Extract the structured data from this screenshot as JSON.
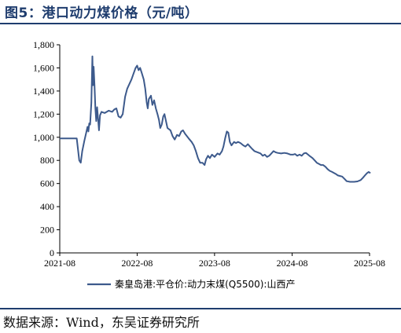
{
  "header": {
    "title": "图5：港口动力煤价格（元/吨）"
  },
  "footer": {
    "source": "数据来源：Wind，东吴证券研究所"
  },
  "colors": {
    "accent": "#1f3d6e",
    "series": "#3d5a8c"
  },
  "chart_data": {
    "type": "line",
    "title": "",
    "xlabel": "",
    "ylabel": "",
    "ylim": [
      0,
      1800
    ],
    "yticks": [
      0,
      200,
      400,
      600,
      800,
      1000,
      1200,
      1400,
      1600,
      1800
    ],
    "ytick_labels": [
      "0",
      "200",
      "400",
      "600",
      "800",
      "1,000",
      "1,200",
      "1,400",
      "1,600",
      "1,800"
    ],
    "xlim": [
      "2021-08",
      "2025-08"
    ],
    "xticks": [
      "2021-08",
      "2022-08",
      "2023-08",
      "2024-08",
      "2025-08"
    ],
    "legend_position": "bottom",
    "grid": false,
    "series": [
      {
        "name": "秦皇岛港:平仓价:动力末煤(Q5500):山西产",
        "points": [
          [
            "2021-08-01",
            990
          ],
          [
            "2021-10-20",
            990
          ],
          [
            "2021-11-01",
            800
          ],
          [
            "2021-11-08",
            780
          ],
          [
            "2021-11-15",
            880
          ],
          [
            "2021-11-25",
            970
          ],
          [
            "2021-12-05",
            1050
          ],
          [
            "2021-12-10",
            1090
          ],
          [
            "2021-12-14",
            1050
          ],
          [
            "2021-12-18",
            1120
          ],
          [
            "2021-12-22",
            1110
          ],
          [
            "2021-12-28",
            1300
          ],
          [
            "2022-01-02",
            1700
          ],
          [
            "2022-01-05",
            1450
          ],
          [
            "2022-01-08",
            1610
          ],
          [
            "2022-01-12",
            1450
          ],
          [
            "2022-01-16",
            1250
          ],
          [
            "2022-01-20",
            1140
          ],
          [
            "2022-01-24",
            1260
          ],
          [
            "2022-01-28",
            1180
          ],
          [
            "2022-02-02",
            1060
          ],
          [
            "2022-02-07",
            1190
          ],
          [
            "2022-02-14",
            1220
          ],
          [
            "2022-03-01",
            1210
          ],
          [
            "2022-03-20",
            1230
          ],
          [
            "2022-04-05",
            1220
          ],
          [
            "2022-04-15",
            1240
          ],
          [
            "2022-04-25",
            1250
          ],
          [
            "2022-05-05",
            1180
          ],
          [
            "2022-05-15",
            1170
          ],
          [
            "2022-05-25",
            1200
          ],
          [
            "2022-06-05",
            1350
          ],
          [
            "2022-06-15",
            1420
          ],
          [
            "2022-06-25",
            1460
          ],
          [
            "2022-07-05",
            1500
          ],
          [
            "2022-07-15",
            1550
          ],
          [
            "2022-07-25",
            1600
          ],
          [
            "2022-08-01",
            1620
          ],
          [
            "2022-08-08",
            1580
          ],
          [
            "2022-08-15",
            1600
          ],
          [
            "2022-08-22",
            1560
          ],
          [
            "2022-09-01",
            1500
          ],
          [
            "2022-09-08",
            1420
          ],
          [
            "2022-09-15",
            1300
          ],
          [
            "2022-09-20",
            1250
          ],
          [
            "2022-09-25",
            1330
          ],
          [
            "2022-10-05",
            1360
          ],
          [
            "2022-10-12",
            1280
          ],
          [
            "2022-10-20",
            1320
          ],
          [
            "2022-10-28",
            1250
          ],
          [
            "2022-11-05",
            1200
          ],
          [
            "2022-11-12",
            1150
          ],
          [
            "2022-11-18",
            1080
          ],
          [
            "2022-11-25",
            1110
          ],
          [
            "2022-12-02",
            1180
          ],
          [
            "2022-12-08",
            1200
          ],
          [
            "2022-12-15",
            1140
          ],
          [
            "2022-12-22",
            1080
          ],
          [
            "2023-01-05",
            1060
          ],
          [
            "2023-01-15",
            1010
          ],
          [
            "2023-01-25",
            980
          ],
          [
            "2023-02-05",
            1020
          ],
          [
            "2023-02-15",
            1010
          ],
          [
            "2023-02-25",
            1050
          ],
          [
            "2023-03-05",
            1060
          ],
          [
            "2023-03-15",
            1030
          ],
          [
            "2023-04-01",
            990
          ],
          [
            "2023-04-15",
            960
          ],
          [
            "2023-04-25",
            930
          ],
          [
            "2023-05-05",
            880
          ],
          [
            "2023-05-15",
            820
          ],
          [
            "2023-05-25",
            780
          ],
          [
            "2023-06-05",
            780
          ],
          [
            "2023-06-15",
            760
          ],
          [
            "2023-06-22",
            810
          ],
          [
            "2023-07-01",
            840
          ],
          [
            "2023-07-10",
            820
          ],
          [
            "2023-07-20",
            850
          ],
          [
            "2023-08-01",
            830
          ],
          [
            "2023-08-15",
            860
          ],
          [
            "2023-08-25",
            850
          ],
          [
            "2023-09-05",
            880
          ],
          [
            "2023-09-12",
            920
          ],
          [
            "2023-09-20",
            990
          ],
          [
            "2023-09-28",
            1050
          ],
          [
            "2023-10-05",
            1040
          ],
          [
            "2023-10-12",
            960
          ],
          [
            "2023-10-20",
            930
          ],
          [
            "2023-11-01",
            960
          ],
          [
            "2023-11-10",
            950
          ],
          [
            "2023-11-20",
            960
          ],
          [
            "2023-12-01",
            950
          ],
          [
            "2023-12-15",
            930
          ],
          [
            "2023-12-25",
            920
          ],
          [
            "2024-01-05",
            940
          ],
          [
            "2024-01-15",
            920
          ],
          [
            "2024-01-25",
            900
          ],
          [
            "2024-02-05",
            880
          ],
          [
            "2024-02-20",
            870
          ],
          [
            "2024-03-05",
            860
          ],
          [
            "2024-03-15",
            840
          ],
          [
            "2024-03-25",
            850
          ],
          [
            "2024-04-05",
            830
          ],
          [
            "2024-04-15",
            840
          ],
          [
            "2024-04-25",
            860
          ],
          [
            "2024-05-05",
            880
          ],
          [
            "2024-05-15",
            870
          ],
          [
            "2024-05-25",
            865
          ],
          [
            "2024-06-10",
            860
          ],
          [
            "2024-06-25",
            865
          ],
          [
            "2024-07-10",
            860
          ],
          [
            "2024-07-25",
            850
          ],
          [
            "2024-08-05",
            850
          ],
          [
            "2024-08-15",
            855
          ],
          [
            "2024-08-25",
            840
          ],
          [
            "2024-09-05",
            850
          ],
          [
            "2024-09-15",
            840
          ],
          [
            "2024-09-25",
            860
          ],
          [
            "2024-10-05",
            865
          ],
          [
            "2024-10-15",
            850
          ],
          [
            "2024-10-25",
            835
          ],
          [
            "2024-11-05",
            820
          ],
          [
            "2024-11-15",
            800
          ],
          [
            "2024-11-25",
            780
          ],
          [
            "2024-12-05",
            770
          ],
          [
            "2024-12-15",
            760
          ],
          [
            "2024-12-25",
            760
          ],
          [
            "2025-01-05",
            745
          ],
          [
            "2025-01-15",
            725
          ],
          [
            "2025-01-25",
            710
          ],
          [
            "2025-02-05",
            700
          ],
          [
            "2025-02-15",
            690
          ],
          [
            "2025-02-25",
            680
          ],
          [
            "2025-03-05",
            670
          ],
          [
            "2025-03-15",
            665
          ],
          [
            "2025-03-25",
            660
          ],
          [
            "2025-04-05",
            640
          ],
          [
            "2025-04-15",
            620
          ],
          [
            "2025-05-01",
            615
          ],
          [
            "2025-05-20",
            615
          ],
          [
            "2025-06-05",
            618
          ],
          [
            "2025-06-20",
            630
          ],
          [
            "2025-07-01",
            650
          ],
          [
            "2025-07-10",
            670
          ],
          [
            "2025-07-20",
            690
          ],
          [
            "2025-07-28",
            700
          ],
          [
            "2025-08-05",
            690
          ]
        ]
      }
    ]
  }
}
